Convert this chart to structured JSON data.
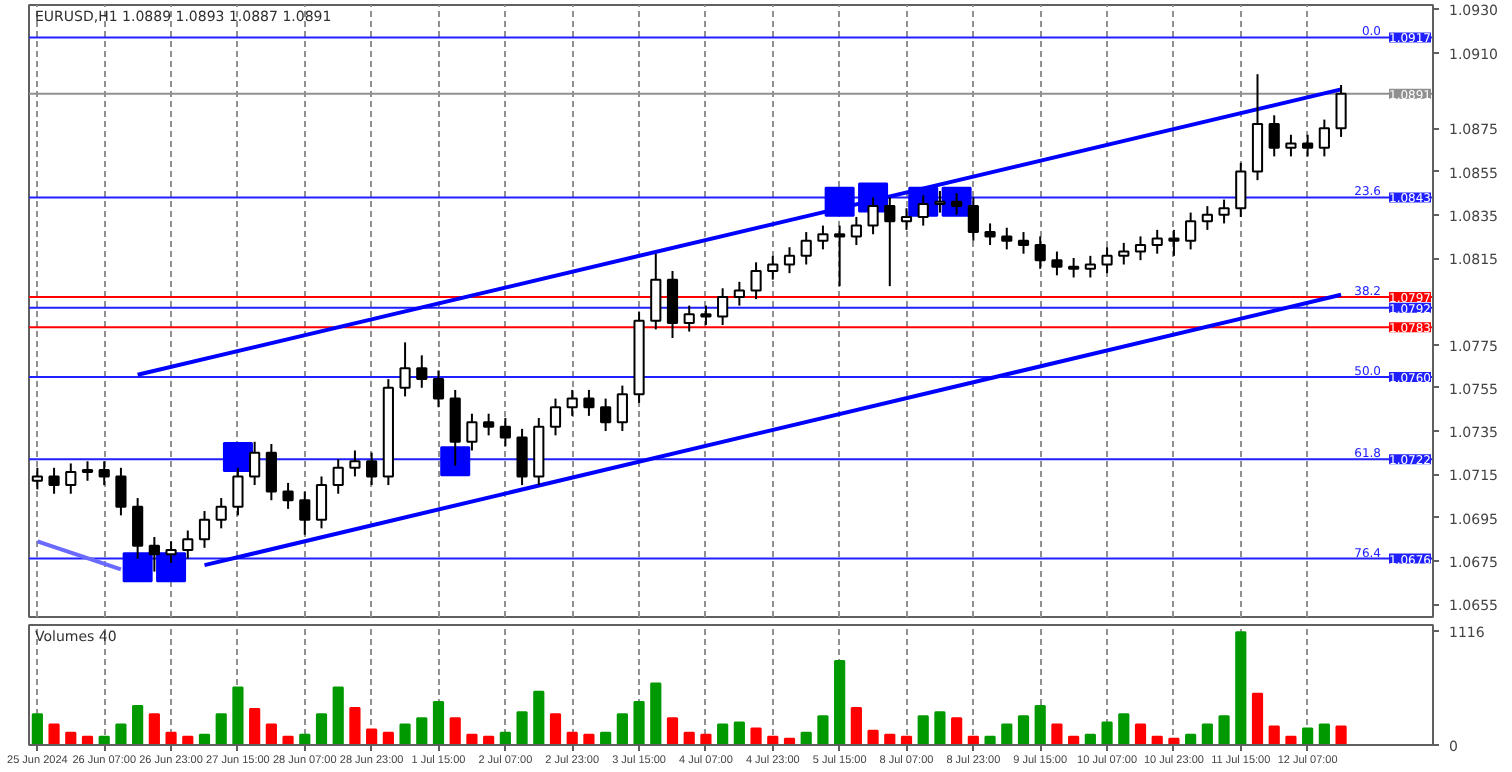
{
  "chart_data": [
    {
      "type": "candlestick",
      "title": "EURUSD,H1  1.0889 1.0893 1.0887 1.0891",
      "color": "#000000",
      "tick_labels": "y",
      "grid": "x",
      "categories": [
        null,
        null,
        null,
        null,
        null,
        null,
        null,
        null,
        null,
        null,
        null,
        null,
        null,
        null,
        null,
        null,
        null,
        null,
        null,
        null,
        null,
        null,
        null,
        null,
        null,
        null,
        null,
        null,
        null,
        null,
        null,
        null,
        null,
        null,
        null,
        null,
        null,
        null,
        null,
        null,
        null,
        null,
        null,
        null,
        null,
        null,
        null,
        null,
        null,
        null,
        null,
        null,
        null,
        null,
        null,
        null,
        null,
        null,
        null,
        null,
        null,
        null,
        null,
        null,
        null,
        null,
        null,
        null,
        null,
        null,
        null,
        null,
        null,
        null,
        null,
        null,
        null,
        null,
        null,
        null,
        null,
        null,
        null,
        null
      ],
      "ohlc": [
        [
          1.0712,
          1.0718,
          1.0708,
          1.0714
        ],
        [
          1.0714,
          1.0718,
          1.0706,
          1.071
        ],
        [
          1.071,
          1.072,
          1.0706,
          1.0716
        ],
        [
          1.0716,
          1.0721,
          1.0712,
          1.0717
        ],
        [
          1.0717,
          1.0721,
          1.071,
          1.0714
        ],
        [
          1.0714,
          1.0718,
          1.0696,
          1.07
        ],
        [
          1.07,
          1.0704,
          1.0676,
          1.0682
        ],
        [
          1.0682,
          1.0686,
          1.067,
          1.0678
        ],
        [
          1.0678,
          1.0684,
          1.0674,
          1.068
        ],
        [
          1.068,
          1.0689,
          1.0676,
          1.0685
        ],
        [
          1.0685,
          1.0698,
          1.0681,
          1.0694
        ],
        [
          1.0694,
          1.0704,
          1.069,
          1.07
        ],
        [
          1.07,
          1.0718,
          1.0696,
          1.0714
        ],
        [
          1.0714,
          1.073,
          1.071,
          1.0725
        ],
        [
          1.0725,
          1.0729,
          1.0703,
          1.0707
        ],
        [
          1.0707,
          1.0711,
          1.0699,
          1.0703
        ],
        [
          1.0703,
          1.0707,
          1.0687,
          1.0694
        ],
        [
          1.0694,
          1.0714,
          1.069,
          1.071
        ],
        [
          1.071,
          1.0722,
          1.0706,
          1.0718
        ],
        [
          1.0718,
          1.0726,
          1.0714,
          1.0721
        ],
        [
          1.0721,
          1.0725,
          1.071,
          1.0714
        ],
        [
          1.0714,
          1.0759,
          1.071,
          1.0755
        ],
        [
          1.0755,
          1.0776,
          1.0751,
          1.0764
        ],
        [
          1.0764,
          1.077,
          1.0755,
          1.0759
        ],
        [
          1.0759,
          1.0763,
          1.0746,
          1.075
        ],
        [
          1.075,
          1.0754,
          1.0719,
          1.073
        ],
        [
          1.073,
          1.0743,
          1.0726,
          1.0739
        ],
        [
          1.0739,
          1.0743,
          1.0733,
          1.0737
        ],
        [
          1.0737,
          1.0741,
          1.0728,
          1.0732
        ],
        [
          1.0732,
          1.0736,
          1.071,
          1.0714
        ],
        [
          1.0714,
          1.0741,
          1.071,
          1.0737
        ],
        [
          1.0737,
          1.075,
          1.0733,
          1.0746
        ],
        [
          1.0746,
          1.0754,
          1.0742,
          1.075
        ],
        [
          1.075,
          1.0754,
          1.0742,
          1.0746
        ],
        [
          1.0746,
          1.075,
          1.0735,
          1.0739
        ],
        [
          1.0739,
          1.0756,
          1.0735,
          1.0752
        ],
        [
          1.0752,
          1.079,
          1.0748,
          1.0786
        ],
        [
          1.0786,
          1.0817,
          1.0782,
          1.0805
        ],
        [
          1.0805,
          1.0809,
          1.0778,
          1.0785
        ],
        [
          1.0785,
          1.0793,
          1.0781,
          1.0789
        ],
        [
          1.0789,
          1.0793,
          1.0784,
          1.0788
        ],
        [
          1.0788,
          1.0801,
          1.0784,
          1.0797
        ],
        [
          1.0797,
          1.0804,
          1.0793,
          1.08
        ],
        [
          1.08,
          1.0813,
          1.0796,
          1.0809
        ],
        [
          1.0809,
          1.0816,
          1.0805,
          1.0812
        ],
        [
          1.0812,
          1.082,
          1.0808,
          1.0816
        ],
        [
          1.0816,
          1.0827,
          1.0812,
          1.0823
        ],
        [
          1.0823,
          1.083,
          1.0819,
          1.0826
        ],
        [
          1.0826,
          1.083,
          1.0802,
          1.0825
        ],
        [
          1.0825,
          1.0834,
          1.0821,
          1.083
        ],
        [
          1.083,
          1.0843,
          1.0826,
          1.0839
        ],
        [
          1.0839,
          1.0843,
          1.0802,
          1.0832
        ],
        [
          1.0832,
          1.0838,
          1.0828,
          1.0834
        ],
        [
          1.0834,
          1.0844,
          1.083,
          1.084
        ],
        [
          1.084,
          1.0846,
          1.0836,
          1.0841
        ],
        [
          1.0841,
          1.0845,
          1.0835,
          1.0839
        ],
        [
          1.0839,
          1.0843,
          1.0823,
          1.0827
        ],
        [
          1.0827,
          1.0831,
          1.0821,
          1.0825
        ],
        [
          1.0825,
          1.0829,
          1.0819,
          1.0823
        ],
        [
          1.0823,
          1.0827,
          1.0817,
          1.0821
        ],
        [
          1.0821,
          1.0825,
          1.081,
          1.0814
        ],
        [
          1.0814,
          1.0818,
          1.0807,
          1.0811
        ],
        [
          1.0811,
          1.0815,
          1.0806,
          1.081
        ],
        [
          1.081,
          1.0816,
          1.0806,
          1.0812
        ],
        [
          1.0812,
          1.082,
          1.0808,
          1.0816
        ],
        [
          1.0816,
          1.0822,
          1.0812,
          1.0818
        ],
        [
          1.0818,
          1.0825,
          1.0814,
          1.0821
        ],
        [
          1.0821,
          1.0828,
          1.0817,
          1.0824
        ],
        [
          1.0824,
          1.0828,
          1.0816,
          1.0823
        ],
        [
          1.0823,
          1.0836,
          1.0819,
          1.0832
        ],
        [
          1.0832,
          1.0839,
          1.0828,
          1.0835
        ],
        [
          1.0835,
          1.0842,
          1.0831,
          1.0838
        ],
        [
          1.0838,
          1.0859,
          1.0834,
          1.0855
        ],
        [
          1.0855,
          1.09,
          1.0851,
          1.0877
        ],
        [
          1.0877,
          1.0881,
          1.0862,
          1.0866
        ],
        [
          1.0866,
          1.0872,
          1.0862,
          1.0868
        ],
        [
          1.0868,
          1.0872,
          1.0862,
          1.0866
        ],
        [
          1.0866,
          1.0879,
          1.0862,
          1.0875
        ],
        [
          1.0875,
          1.0895,
          1.0871,
          1.0891
        ],
        null,
        null,
        null,
        null,
        null
      ],
      "series": [
        {
          "type": "line",
          "color": "#0000ff",
          "values": [
            null,
            null,
            null,
            null,
            null,
            null,
            1.0761,
            null,
            null,
            null,
            null,
            null,
            null,
            null,
            null,
            null,
            null,
            null,
            null,
            null,
            null,
            null,
            null,
            null,
            null,
            null,
            null,
            null,
            null,
            null,
            null,
            null,
            null,
            null,
            null,
            null,
            null,
            null,
            null,
            null,
            null,
            null,
            null,
            null,
            null,
            null,
            null,
            null,
            null,
            null,
            null,
            null,
            null,
            null,
            null,
            null,
            null,
            null,
            null,
            null,
            null,
            null,
            null,
            null,
            null,
            null,
            null,
            null,
            null,
            null,
            null,
            null,
            null,
            null,
            null,
            null,
            null,
            null,
            1.0893,
            null,
            null,
            null,
            null,
            null
          ]
        },
        {
          "type": "line",
          "color": "#0000ff",
          "values": [
            null,
            null,
            null,
            null,
            null,
            null,
            null,
            null,
            null,
            null,
            1.0673,
            null,
            null,
            null,
            null,
            null,
            null,
            null,
            null,
            null,
            null,
            null,
            null,
            null,
            null,
            null,
            null,
            null,
            null,
            null,
            null,
            null,
            null,
            null,
            null,
            null,
            null,
            null,
            null,
            null,
            null,
            null,
            null,
            null,
            null,
            null,
            null,
            null,
            null,
            null,
            null,
            null,
            null,
            null,
            null,
            null,
            null,
            null,
            null,
            null,
            null,
            null,
            null,
            null,
            null,
            null,
            null,
            null,
            null,
            null,
            null,
            null,
            null,
            null,
            null,
            null,
            null,
            null,
            1.0798,
            null,
            null,
            null,
            null,
            null
          ]
        },
        {
          "type": "line",
          "color": "#6a6aff",
          "values": [
            1.0684,
            null,
            null,
            null,
            null,
            1.0671,
            null,
            null,
            null,
            null,
            null,
            null,
            null,
            null,
            null,
            null,
            null,
            null,
            null,
            null,
            null,
            null,
            null,
            null,
            null,
            null,
            null,
            null,
            null,
            null,
            null,
            null,
            null,
            null,
            null,
            null,
            null,
            null,
            null,
            null,
            null,
            null,
            null,
            null,
            null,
            null,
            null,
            null,
            null,
            null,
            null,
            null,
            null,
            null,
            null,
            null,
            null,
            null,
            null,
            null,
            null,
            null,
            null,
            null,
            null,
            null,
            null,
            null,
            null,
            null,
            null,
            null,
            null,
            null,
            null,
            null,
            null,
            null,
            null,
            null,
            null,
            null,
            null,
            null
          ]
        },
        {
          "type": "scatter",
          "marker": "square",
          "color": "#0000ff",
          "values": [
            null,
            null,
            null,
            null,
            null,
            null,
            1.0672,
            null,
            1.0672,
            null,
            null,
            null,
            1.0723,
            null,
            null,
            null,
            null,
            null,
            null,
            null,
            null,
            null,
            null,
            null,
            null,
            1.0721,
            null,
            null,
            null,
            null,
            null,
            null,
            null,
            null,
            null,
            null,
            null,
            null,
            null,
            null,
            null,
            null,
            null,
            null,
            null,
            null,
            null,
            null,
            1.0841,
            null,
            1.0843,
            null,
            null,
            1.0841,
            null,
            1.0841,
            null,
            null,
            null,
            null,
            null,
            null,
            null,
            null,
            null,
            null,
            null,
            null,
            null,
            null,
            null,
            null,
            null,
            null,
            null,
            null,
            null,
            null,
            null,
            null,
            null,
            null,
            null,
            null
          ]
        }
      ],
      "ylim": [
        1.0649,
        1.0932
      ],
      "yticks": [
        1.0655,
        1.0675,
        1.0695,
        1.0715,
        1.0735,
        1.0755,
        1.0775,
        1.0815,
        1.0835,
        1.0855,
        1.0875,
        {
          "value": 1.091,
          "label": "1.0910"
        },
        {
          "value": 1.093,
          "label": "1.0930"
        }
      ],
      "ref_lines": [
        {
          "axis": "y",
          "value": 1.0917,
          "label": "1.0917",
          "color": "#2020ff"
        },
        {
          "axis": "y",
          "value": 1.0891,
          "label": "1.0891",
          "color": "#909090"
        },
        {
          "axis": "y",
          "value": 1.0843,
          "label": "1.0843",
          "color": "#2020ff"
        },
        {
          "axis": "y",
          "value": 1.0797,
          "label": "1.0797",
          "color": "#ff0000"
        },
        {
          "axis": "y",
          "value": 1.0792,
          "label": "1.0792",
          "color": "#2020ff"
        },
        {
          "axis": "y",
          "value": 1.0783,
          "label": "1.0783",
          "color": "#ff0000"
        },
        {
          "axis": "y",
          "value": 1.076,
          "label": "1.0760",
          "color": "#2020ff"
        },
        {
          "axis": "y",
          "value": 1.0722,
          "label": "1.0722",
          "color": "#2020ff"
        },
        {
          "axis": "y",
          "value": 1.0676,
          "label": "1.0676",
          "color": "#2020ff"
        }
      ],
      "annotations": [
        {
          "text": "0.0",
          "y": 1.0917
        },
        {
          "text": "23.6",
          "y": 1.0843
        },
        {
          "text": "38.2",
          "y": 1.0797
        },
        {
          "text": "50.0",
          "y": 1.076
        },
        {
          "text": "61.8",
          "y": 1.0722
        },
        {
          "text": "76.4",
          "y": 1.0676
        }
      ]
    },
    {
      "type": "bar",
      "title": "Volumes 40",
      "grid": "x",
      "categories": [
        "25 Jun 2024",
        null,
        null,
        null,
        "26 Jun 07:00",
        null,
        null,
        null,
        "26 Jun 23:00",
        null,
        null,
        null,
        "27 Jun 15:00",
        null,
        null,
        null,
        "28 Jun 07:00",
        null,
        null,
        null,
        "28 Jun 23:00",
        null,
        null,
        null,
        "1 Jul 15:00",
        null,
        null,
        null,
        "2 Jul 07:00",
        null,
        null,
        null,
        "2 Jul 23:00",
        null,
        null,
        null,
        "3 Jul 15:00",
        null,
        null,
        null,
        "4 Jul 07:00",
        null,
        null,
        null,
        "4 Jul 23:00",
        null,
        null,
        null,
        "5 Jul 15:00",
        null,
        null,
        null,
        "8 Jul 07:00",
        null,
        null,
        null,
        "8 Jul 23:00",
        null,
        null,
        null,
        "9 Jul 15:00",
        null,
        null,
        null,
        "10 Jul 07:00",
        null,
        null,
        null,
        "10 Jul 23:00",
        null,
        null,
        null,
        "11 Jul 15:00",
        null,
        null,
        null,
        "12 Jul 07:00",
        null,
        null,
        null,
        null,
        null,
        null,
        null
      ],
      "values": [
        300,
        200,
        120,
        80,
        80,
        200,
        380,
        300,
        120,
        80,
        100,
        300,
        560,
        350,
        200,
        80,
        100,
        300,
        560,
        360,
        150,
        120,
        200,
        260,
        420,
        260,
        100,
        80,
        120,
        320,
        520,
        300,
        120,
        100,
        120,
        300,
        420,
        600,
        260,
        120,
        100,
        200,
        220,
        160,
        80,
        60,
        120,
        280,
        820,
        360,
        140,
        100,
        80,
        280,
        320,
        260,
        80,
        80,
        200,
        280,
        380,
        200,
        80,
        100,
        220,
        300,
        200,
        80,
        60,
        100,
        200,
        280,
        1100,
        500,
        180,
        80,
        160,
        200,
        180,
        null,
        null,
        null,
        null,
        null
      ],
      "colors": [
        "#009900",
        "#ff0000",
        "#ff0000",
        "#ff0000",
        "#009900",
        "#009900",
        "#009900",
        "#ff0000",
        "#ff0000",
        "#ff0000",
        "#009900",
        "#009900",
        "#009900",
        "#ff0000",
        "#ff0000",
        "#ff0000",
        "#009900",
        "#009900",
        "#009900",
        "#ff0000",
        "#ff0000",
        "#ff0000",
        "#009900",
        "#009900",
        "#009900",
        "#ff0000",
        "#ff0000",
        "#ff0000",
        "#009900",
        "#009900",
        "#009900",
        "#ff0000",
        "#ff0000",
        "#ff0000",
        "#009900",
        "#009900",
        "#009900",
        "#009900",
        "#ff0000",
        "#ff0000",
        "#ff0000",
        "#009900",
        "#009900",
        "#ff0000",
        "#ff0000",
        "#ff0000",
        "#009900",
        "#009900",
        "#009900",
        "#ff0000",
        "#ff0000",
        "#ff0000",
        "#ff0000",
        "#009900",
        "#009900",
        "#ff0000",
        "#ff0000",
        "#009900",
        "#009900",
        "#009900",
        "#009900",
        "#ff0000",
        "#ff0000",
        "#009900",
        "#009900",
        "#009900",
        "#ff0000",
        "#ff0000",
        "#ff0000",
        "#009900",
        "#009900",
        "#009900",
        "#009900",
        "#ff0000",
        "#ff0000",
        "#ff0000",
        "#009900",
        "#009900",
        "#ff0000",
        null,
        null,
        null,
        null,
        null
      ],
      "ylim": [
        0,
        1170
      ],
      "yticks": [
        0,
        1116
      ]
    }
  ]
}
